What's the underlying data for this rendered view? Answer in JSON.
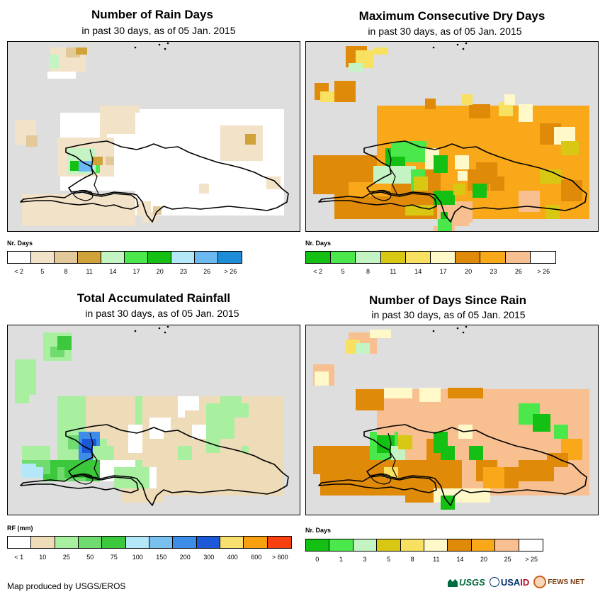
{
  "panels": [
    {
      "title": "Number of Rain Days",
      "subtitle": "in past 30 days, as of 05 Jan. 2015",
      "legend_title": "Nr. Days",
      "scheme": "raindays",
      "legend_colors": [
        "#ffffff",
        "#f2e2c8",
        "#e3c99a",
        "#cfa23a",
        "#c4f4c4",
        "#4ae84a",
        "#14c014",
        "#b4e8f8",
        "#6cb8f0",
        "#1e8cd8"
      ],
      "legend_labels": [
        "< 2",
        "5",
        "8",
        "11",
        "14",
        "17",
        "20",
        "23",
        "26",
        "> 26"
      ]
    },
    {
      "title": "Maximum Consecutive Dry Days",
      "subtitle": "in past 30 days, as of 05 Jan. 2015",
      "legend_title": "Nr. Days",
      "scheme": "drydays",
      "legend_colors": [
        "#14c014",
        "#4ae84a",
        "#c4f4c4",
        "#d8c814",
        "#f8e060",
        "#fff8c8",
        "#e08a0a",
        "#f8a818",
        "#f8bf90",
        "#ffffff"
      ],
      "legend_labels": [
        "< 2",
        "5",
        "8",
        "11",
        "14",
        "17",
        "20",
        "23",
        "26",
        "> 26"
      ]
    },
    {
      "title": "Total Accumulated Rainfall",
      "subtitle": "in past 30 days, as of 05 Jan. 2015",
      "legend_title": "RF (mm)",
      "scheme": "rainfall",
      "legend_colors": [
        "#ffffff",
        "#eedbb8",
        "#a8f0a0",
        "#70dc70",
        "#3cc83c",
        "#b4e8f8",
        "#78c0f0",
        "#3c8ce8",
        "#1c58d8",
        "#f8e070",
        "#f8a010",
        "#f84010"
      ],
      "legend_labels": [
        "< 1",
        "10",
        "25",
        "50",
        "75",
        "100",
        "150",
        "200",
        "300",
        "400",
        "600",
        "> 600"
      ]
    },
    {
      "title": "Number of Days Since Rain",
      "subtitle": "in past 30 days, as of 05 Jan. 2015",
      "legend_title": "Nr. Days",
      "scheme": "sincerain",
      "legend_colors": [
        "#14c014",
        "#4ae84a",
        "#c4f4c4",
        "#d8c814",
        "#f8e060",
        "#fff8c8",
        "#e08a0a",
        "#f8a818",
        "#f8bf90",
        "#ffffff"
      ],
      "legend_labels": [
        "0",
        "1",
        "3",
        "5",
        "8",
        "11",
        "14",
        "20",
        "25",
        "> 25"
      ]
    }
  ],
  "credit": "Map produced by USGS/EROS",
  "logos": {
    "usgs": "USGS",
    "usaid_a": "USA",
    "usaid_b": "ID",
    "fews": "FEWS NET"
  }
}
